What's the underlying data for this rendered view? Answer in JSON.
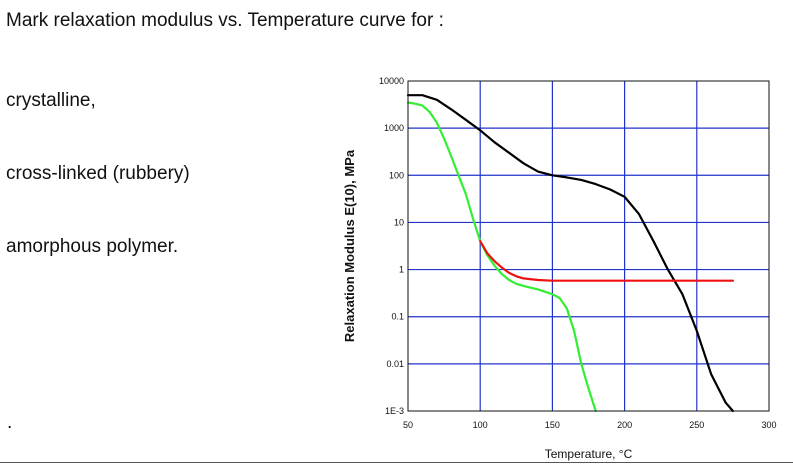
{
  "slide": {
    "question": "Mark relaxation modulus vs. Temperature curve for :",
    "items": [
      "crystalline,",
      "cross-linked (rubbery)",
      "amorphous polymer."
    ],
    "stray_mark": "."
  },
  "chart_data": {
    "type": "line",
    "title": "",
    "xlabel": "Temperature, °C",
    "ylabel": "Relaxation Modulus E(10), MPa",
    "xlim": [
      50,
      300
    ],
    "ylim": [
      0.001,
      10000
    ],
    "yscale": "log",
    "grid": true,
    "x_ticks": [
      50,
      100,
      150,
      200,
      250,
      300
    ],
    "x_tick_labels": [
      "50",
      "100",
      "150",
      "200",
      "250",
      "300"
    ],
    "y_ticks": [
      10000,
      1000,
      100,
      10,
      1,
      0.1,
      0.01,
      0.001
    ],
    "y_tick_labels": [
      "10000",
      "1000",
      "100",
      "10",
      "1",
      "0.1",
      "0.01",
      "1E-3"
    ],
    "colors": {
      "black": "#000000",
      "green": "#33ee33",
      "red": "#ee1111",
      "grid": "#2233cc"
    },
    "series": [
      {
        "color": "black",
        "x": [
          50,
          60,
          70,
          80,
          90,
          100,
          110,
          120,
          130,
          140,
          150,
          160,
          170,
          180,
          190,
          200,
          210,
          220,
          230,
          240,
          250,
          260,
          270,
          275
        ],
        "y": [
          5000,
          5000,
          4000,
          2500,
          1500,
          900,
          500,
          300,
          180,
          120,
          100,
          90,
          80,
          65,
          50,
          35,
          15,
          4,
          1,
          0.3,
          0.05,
          0.006,
          0.0015,
          0.001
        ]
      },
      {
        "color": "green",
        "x": [
          50,
          55,
          60,
          65,
          70,
          75,
          80,
          85,
          90,
          95,
          100,
          105,
          110,
          115,
          120,
          125,
          130,
          140,
          150,
          155,
          160,
          165,
          170,
          175,
          180
        ],
        "y": [
          3500,
          3300,
          3000,
          2200,
          1300,
          600,
          250,
          100,
          40,
          12,
          4,
          2,
          1.2,
          0.8,
          0.6,
          0.5,
          0.45,
          0.38,
          0.3,
          0.25,
          0.15,
          0.05,
          0.01,
          0.003,
          0.001
        ]
      },
      {
        "color": "red",
        "x": [
          100,
          105,
          110,
          115,
          120,
          125,
          130,
          140,
          150,
          175,
          200,
          225,
          250,
          275
        ],
        "y": [
          4,
          2.2,
          1.5,
          1.1,
          0.85,
          0.72,
          0.65,
          0.6,
          0.58,
          0.58,
          0.58,
          0.58,
          0.58,
          0.58
        ]
      }
    ]
  }
}
